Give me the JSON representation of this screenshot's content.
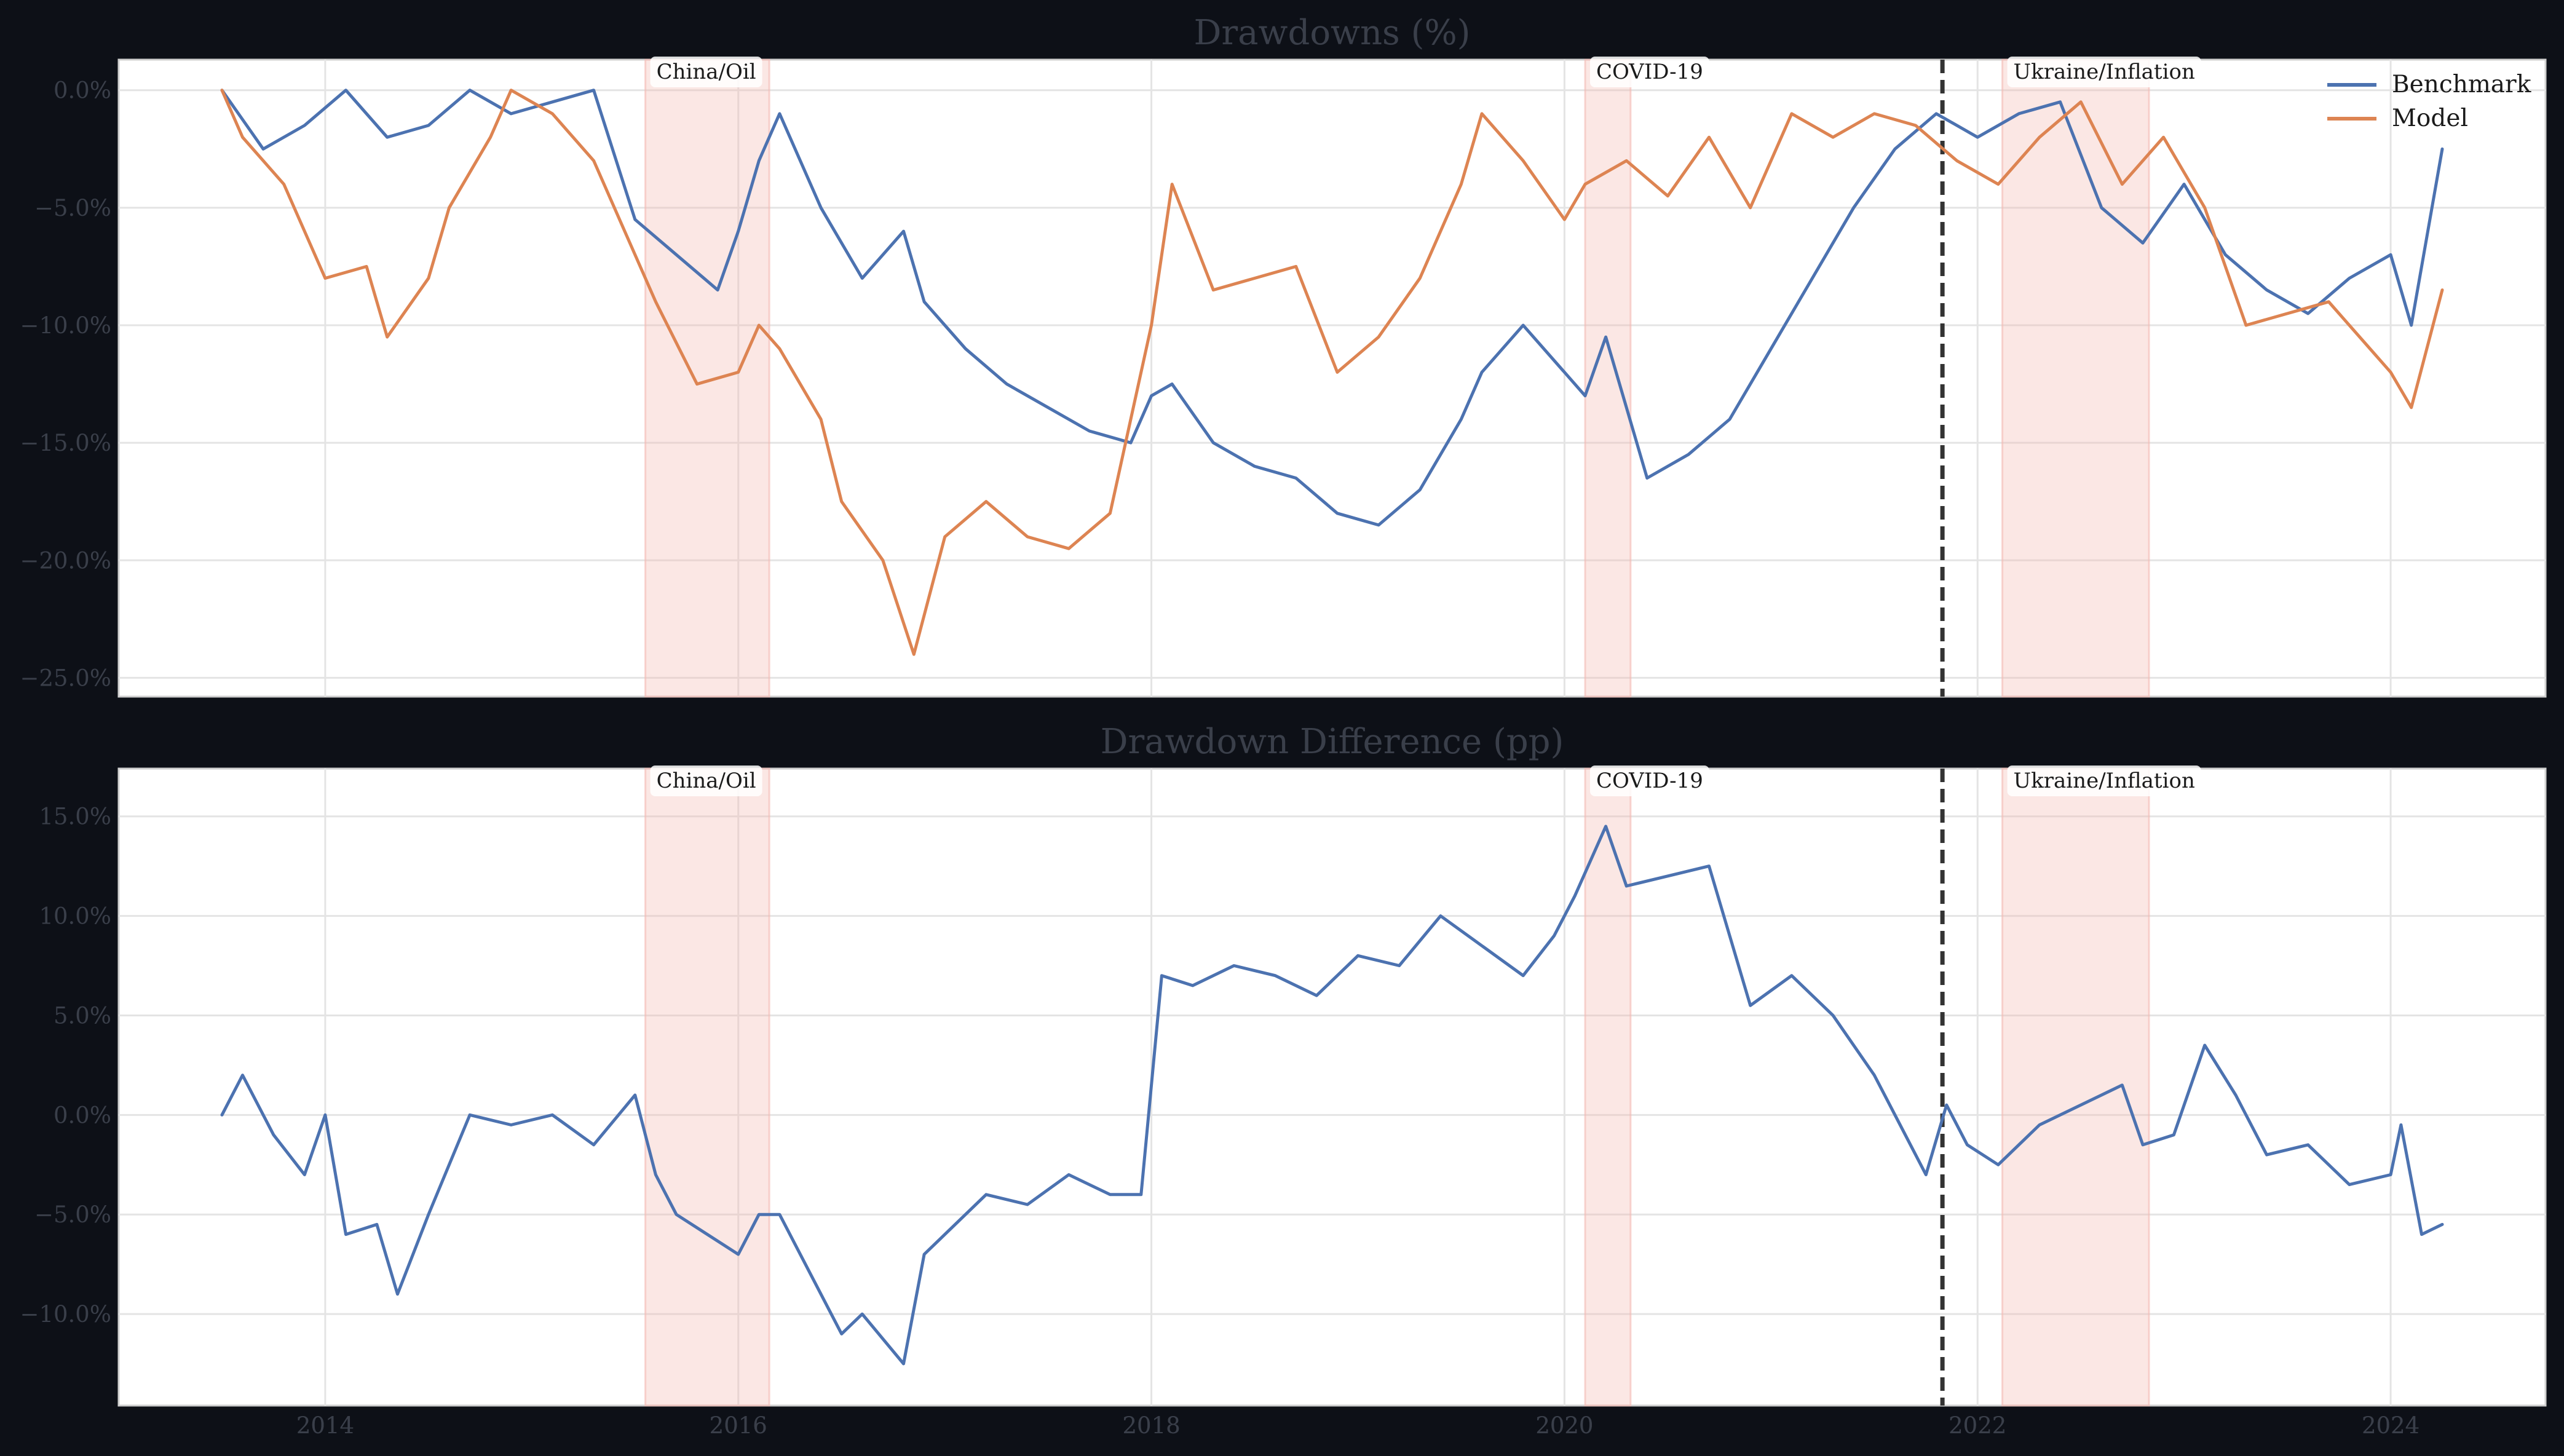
{
  "colors": {
    "background": "#0d1017",
    "benchmark": "#4c72b0",
    "model": "#dd8452",
    "event_shade": "#f4b9b2",
    "marker": "#333333"
  },
  "chart_data": [
    {
      "type": "line",
      "title": "Drawdowns (%)",
      "xlabel": "",
      "ylabel": "",
      "x_ticks": [
        "2014",
        "2016",
        "2018",
        "2020",
        "2022",
        "2024"
      ],
      "xlim": [
        2013.0,
        2024.75
      ],
      "ylim": [
        -25.8,
        1.3
      ],
      "y_ticks": [
        {
          "value": 0,
          "label": "0.0%"
        },
        {
          "value": -5,
          "label": "−5.0%"
        },
        {
          "value": -10,
          "label": "−10.0%"
        },
        {
          "value": -15,
          "label": "−15.0%"
        },
        {
          "value": -20,
          "label": "−20.0%"
        },
        {
          "value": -25,
          "label": "−25.0%"
        }
      ],
      "grid": true,
      "legend": "top-right",
      "events": [
        {
          "label": "China/Oil",
          "start": 2015.55,
          "end": 2016.15
        },
        {
          "label": "COVID-19",
          "start": 2020.1,
          "end": 2020.32
        },
        {
          "label": "Ukraine/Inflation",
          "start": 2022.12,
          "end": 2022.83
        }
      ],
      "marker_x": 2021.83,
      "series": [
        {
          "name": "Benchmark",
          "color": "#4c72b0",
          "x": [
            2013.5,
            2013.7,
            2013.9,
            2014.1,
            2014.3,
            2014.5,
            2014.7,
            2014.9,
            2015.1,
            2015.3,
            2015.5,
            2015.7,
            2015.9,
            2016.0,
            2016.1,
            2016.2,
            2016.4,
            2016.6,
            2016.8,
            2016.9,
            2017.1,
            2017.3,
            2017.5,
            2017.7,
            2017.9,
            2018.0,
            2018.1,
            2018.3,
            2018.5,
            2018.7,
            2018.9,
            2019.1,
            2019.3,
            2019.5,
            2019.6,
            2019.8,
            2020.0,
            2020.1,
            2020.2,
            2020.4,
            2020.6,
            2020.8,
            2021.0,
            2021.2,
            2021.4,
            2021.6,
            2021.8,
            2022.0,
            2022.2,
            2022.4,
            2022.6,
            2022.8,
            2023.0,
            2023.2,
            2023.4,
            2023.6,
            2023.8,
            2024.0,
            2024.1,
            2024.25
          ],
          "y": [
            0,
            -2.5,
            -1.5,
            0,
            -2.0,
            -1.5,
            0,
            -1.0,
            -0.5,
            0,
            -5.5,
            -7.0,
            -8.5,
            -6.0,
            -3.0,
            -1.0,
            -5.0,
            -8.0,
            -6.0,
            -9.0,
            -11.0,
            -12.5,
            -13.5,
            -14.5,
            -15.0,
            -13.0,
            -12.5,
            -15.0,
            -16.0,
            -16.5,
            -18.0,
            -18.5,
            -17.0,
            -14.0,
            -12.0,
            -10.0,
            -12.0,
            -13.0,
            -10.5,
            -16.5,
            -15.5,
            -14.0,
            -11.0,
            -8.0,
            -5.0,
            -2.5,
            -1.0,
            -2.0,
            -1.0,
            -0.5,
            -5.0,
            -6.5,
            -4.0,
            -7.0,
            -8.5,
            -9.5,
            -8.0,
            -7.0,
            -10.0,
            -2.5
          ]
        },
        {
          "name": "Model",
          "color": "#dd8452",
          "x": [
            2013.5,
            2013.6,
            2013.8,
            2014.0,
            2014.2,
            2014.3,
            2014.5,
            2014.6,
            2014.8,
            2014.9,
            2015.1,
            2015.3,
            2015.5,
            2015.6,
            2015.8,
            2016.0,
            2016.1,
            2016.2,
            2016.4,
            2016.5,
            2016.7,
            2016.85,
            2017.0,
            2017.2,
            2017.4,
            2017.6,
            2017.8,
            2018.0,
            2018.1,
            2018.3,
            2018.5,
            2018.7,
            2018.9,
            2019.1,
            2019.3,
            2019.5,
            2019.6,
            2019.8,
            2020.0,
            2020.1,
            2020.3,
            2020.5,
            2020.7,
            2020.9,
            2021.1,
            2021.3,
            2021.5,
            2021.7,
            2021.9,
            2022.1,
            2022.3,
            2022.5,
            2022.7,
            2022.9,
            2023.1,
            2023.3,
            2023.5,
            2023.7,
            2023.9,
            2024.0,
            2024.1,
            2024.25
          ],
          "y": [
            0,
            -2.0,
            -4.0,
            -8.0,
            -7.5,
            -10.5,
            -8.0,
            -5.0,
            -2.0,
            0,
            -1.0,
            -3.0,
            -7.0,
            -9.0,
            -12.5,
            -12.0,
            -10.0,
            -11.0,
            -14.0,
            -17.5,
            -20.0,
            -24.0,
            -19.0,
            -17.5,
            -19.0,
            -19.5,
            -18.0,
            -10.0,
            -4.0,
            -8.5,
            -8.0,
            -7.5,
            -12.0,
            -10.5,
            -8.0,
            -4.0,
            -1.0,
            -3.0,
            -5.5,
            -4.0,
            -3.0,
            -4.5,
            -2.0,
            -5.0,
            -1.0,
            -2.0,
            -1.0,
            -1.5,
            -3.0,
            -4.0,
            -2.0,
            -0.5,
            -4.0,
            -2.0,
            -5.0,
            -10.0,
            -9.5,
            -9.0,
            -11.0,
            -12.0,
            -13.5,
            -8.5
          ]
        }
      ]
    },
    {
      "type": "line",
      "title": "Drawdown Difference (pp)",
      "xlabel": "",
      "ylabel": "",
      "x_ticks": [
        "2014",
        "2016",
        "2018",
        "2020",
        "2022",
        "2024"
      ],
      "xlim": [
        2013.0,
        2024.75
      ],
      "ylim": [
        -14.6,
        17.4
      ],
      "y_ticks": [
        {
          "value": 15,
          "label": "15.0%"
        },
        {
          "value": 10,
          "label": "10.0%"
        },
        {
          "value": 5,
          "label": "5.0%"
        },
        {
          "value": 0,
          "label": "0.0%"
        },
        {
          "value": -5,
          "label": "−5.0%"
        },
        {
          "value": -10,
          "label": "−10.0%"
        }
      ],
      "grid": true,
      "legend": "none",
      "events": [
        {
          "label": "China/Oil",
          "start": 2015.55,
          "end": 2016.15
        },
        {
          "label": "COVID-19",
          "start": 2020.1,
          "end": 2020.32
        },
        {
          "label": "Ukraine/Inflation",
          "start": 2022.12,
          "end": 2022.83
        }
      ],
      "marker_x": 2021.83,
      "series": [
        {
          "name": "",
          "color": "#4c72b0",
          "x": [
            2013.5,
            2013.6,
            2013.75,
            2013.9,
            2014.0,
            2014.1,
            2014.25,
            2014.35,
            2014.5,
            2014.7,
            2014.9,
            2015.1,
            2015.3,
            2015.5,
            2015.6,
            2015.7,
            2015.85,
            2016.0,
            2016.1,
            2016.2,
            2016.35,
            2016.5,
            2016.6,
            2016.8,
            2016.9,
            2017.0,
            2017.2,
            2017.4,
            2017.6,
            2017.8,
            2017.95,
            2018.05,
            2018.2,
            2018.4,
            2018.6,
            2018.8,
            2019.0,
            2019.2,
            2019.4,
            2019.6,
            2019.8,
            2019.95,
            2020.05,
            2020.2,
            2020.3,
            2020.5,
            2020.7,
            2020.8,
            2020.9,
            2021.1,
            2021.3,
            2021.5,
            2021.6,
            2021.75,
            2021.85,
            2021.95,
            2022.1,
            2022.3,
            2022.5,
            2022.7,
            2022.8,
            2022.95,
            2023.1,
            2023.25,
            2023.4,
            2023.6,
            2023.8,
            2024.0,
            2024.05,
            2024.15,
            2024.25
          ],
          "y": [
            0,
            2.0,
            -1.0,
            -3.0,
            0,
            -6.0,
            -5.5,
            -9.0,
            -5.0,
            0,
            -0.5,
            0,
            -1.5,
            1.0,
            -3.0,
            -5.0,
            -6.0,
            -7.0,
            -5.0,
            -5.0,
            -8.0,
            -11.0,
            -10.0,
            -12.5,
            -7.0,
            -6.0,
            -4.0,
            -4.5,
            -3.0,
            -4.0,
            -4.0,
            7.0,
            6.5,
            7.5,
            7.0,
            6.0,
            8.0,
            7.5,
            10.0,
            8.5,
            7.0,
            9.0,
            11.0,
            14.5,
            11.5,
            12.0,
            12.5,
            9.0,
            5.5,
            7.0,
            5.0,
            2.0,
            0,
            -3.0,
            0.5,
            -1.5,
            -2.5,
            -0.5,
            0.5,
            1.5,
            -1.5,
            -1.0,
            3.5,
            1.0,
            -2.0,
            -1.5,
            -3.5,
            -3.0,
            -0.5,
            -6.0,
            -5.5
          ]
        }
      ]
    }
  ]
}
